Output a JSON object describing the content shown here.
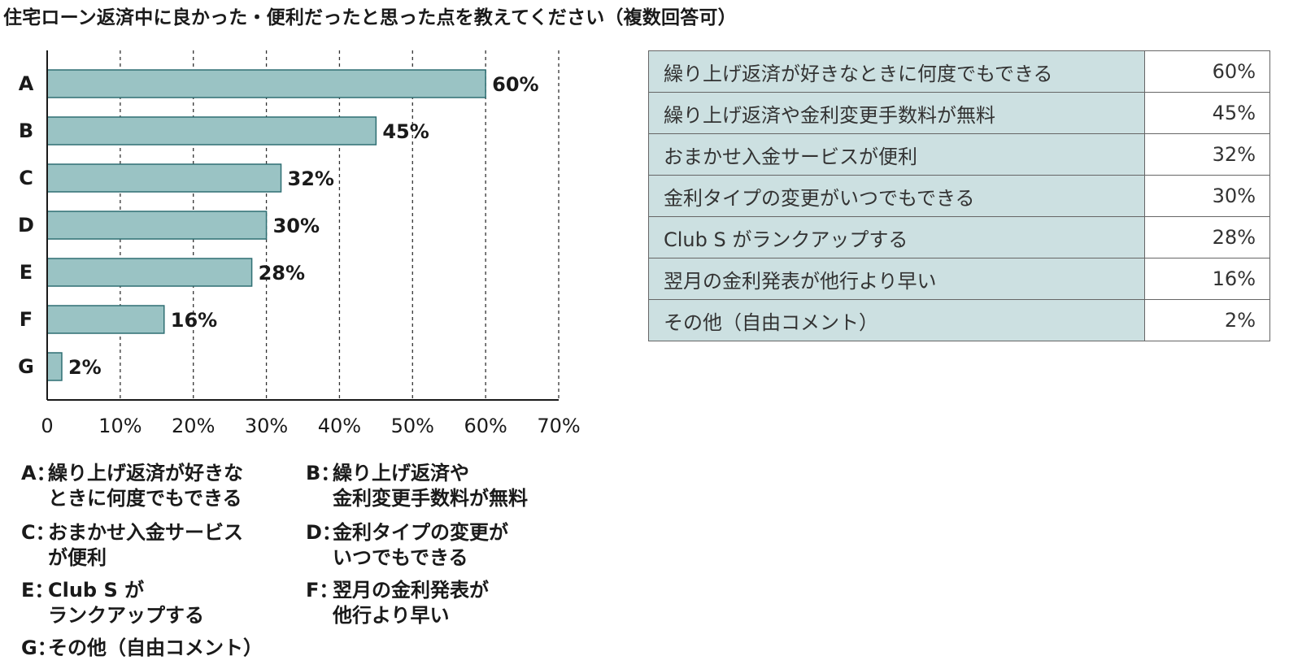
{
  "title": "住宅ローン返済中に良かった・便利だったと思った点を教えてください（複数回答可）",
  "chart_data": {
    "type": "bar",
    "orientation": "horizontal",
    "categories": [
      "A",
      "B",
      "C",
      "D",
      "E",
      "F",
      "G"
    ],
    "values": [
      60,
      45,
      32,
      30,
      28,
      16,
      2
    ],
    "value_labels": [
      "60%",
      "45%",
      "32%",
      "30%",
      "28%",
      "16%",
      "2%"
    ],
    "xlim": [
      0,
      70
    ],
    "xticks": [
      "0",
      "10%",
      "20%",
      "30%",
      "40%",
      "50%",
      "60%",
      "70%"
    ],
    "grid": "vertical dashed",
    "bar_color": "#9ac3c4"
  },
  "legend": [
    {
      "key": "A：",
      "text": "繰り上げ返済が好きな\nときに何度でもできる"
    },
    {
      "key": "B：",
      "text": "繰り上げ返済や\n金利変更手数料が無料"
    },
    {
      "key": "C：",
      "text": "おまかせ入金サービス\nが便利"
    },
    {
      "key": "D：",
      "text": "金利タイプの変更が\nいつでもできる"
    },
    {
      "key": "E：",
      "text": "Club S が\nランクアップする"
    },
    {
      "key": "F：",
      "text": "翌月の金利発表が\n他行より早い"
    },
    {
      "key": "G：",
      "text": "その他（自由コメント）"
    }
  ],
  "table": [
    {
      "label": "繰り上げ返済が好きなときに何度でもできる",
      "value": "60%"
    },
    {
      "label": "繰り上げ返済や金利変更手数料が無料",
      "value": "45%"
    },
    {
      "label": "おまかせ入金サービスが便利",
      "value": "32%"
    },
    {
      "label": "金利タイプの変更がいつでもできる",
      "value": "30%"
    },
    {
      "label": "Club S がランクアップする",
      "value": "28%"
    },
    {
      "label": "翌月の金利発表が他行より早い",
      "value": "16%"
    },
    {
      "label": "その他（自由コメント）",
      "value": "2%"
    }
  ]
}
